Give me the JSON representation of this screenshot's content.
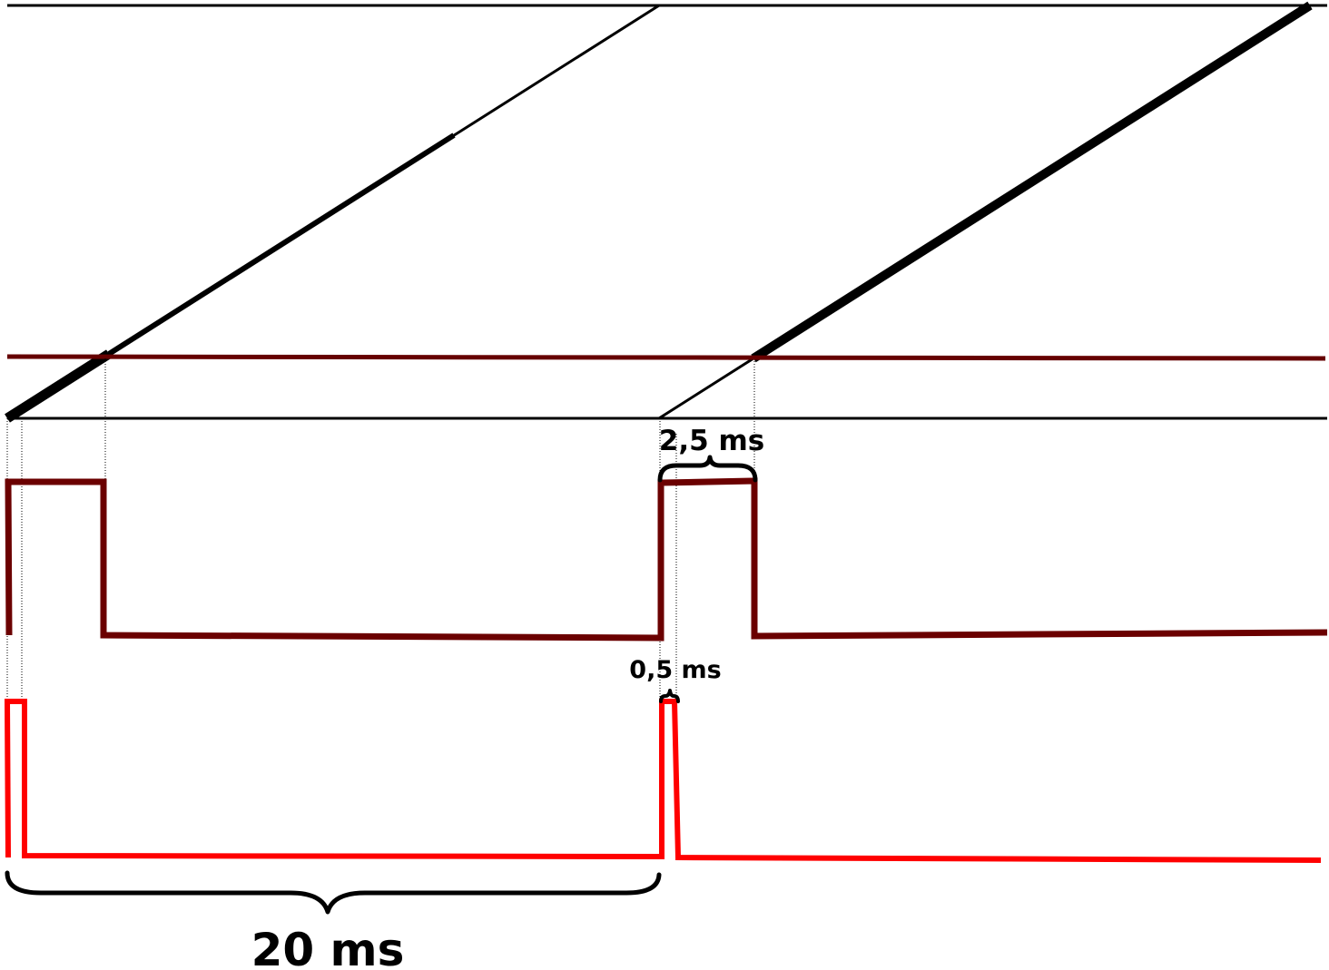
{
  "labels": {
    "period": "20 ms",
    "pulse_wide": "2,5 ms",
    "pulse_narrow": "0,5 ms"
  },
  "colors": {
    "sawtooth": "#000000",
    "threshold_line": "#660000",
    "pwm_wide_signal": "#6b0000",
    "pwm_narrow_signal": "#ff0000",
    "annotation": "#000000"
  }
}
